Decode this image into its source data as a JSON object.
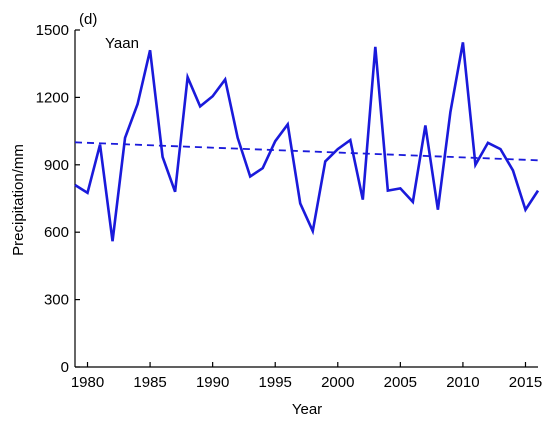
{
  "panel_label": "(d)",
  "chart_data": {
    "type": "line",
    "xlabel": "Year",
    "ylabel": "Precipitation/mm",
    "xlim": [
      1979,
      2016
    ],
    "ylim": [
      0,
      1500
    ],
    "xticks": [
      1980,
      1985,
      1990,
      1995,
      2000,
      2005,
      2010,
      2015
    ],
    "yticks": [
      0,
      300,
      600,
      900,
      1200,
      1500
    ],
    "grid": false,
    "legend": "none",
    "series": [
      {
        "name": "Yaan",
        "color": "#1a1adb",
        "style": "solid",
        "x": [
          1979,
          1980,
          1981,
          1982,
          1983,
          1984,
          1985,
          1986,
          1987,
          1988,
          1989,
          1990,
          1991,
          1992,
          1993,
          1994,
          1995,
          1996,
          1997,
          1998,
          1999,
          2000,
          2001,
          2002,
          2003,
          2004,
          2005,
          2006,
          2007,
          2008,
          2009,
          2010,
          2011,
          2012,
          2013,
          2014,
          2015,
          2016
        ],
        "values": [
          810,
          775,
          990,
          560,
          1020,
          1170,
          1410,
          935,
          780,
          1290,
          1160,
          1205,
          1280,
          1020,
          848,
          885,
          1005,
          1080,
          728,
          605,
          915,
          970,
          1010,
          745,
          1425,
          785,
          795,
          735,
          1075,
          700,
          1135,
          1445,
          900,
          998,
          970,
          875,
          700,
          785
        ]
      },
      {
        "name": "",
        "color": "#1a1adb",
        "style": "dashed",
        "x": [
          1979,
          2016
        ],
        "values": [
          1000,
          920
        ]
      }
    ]
  }
}
